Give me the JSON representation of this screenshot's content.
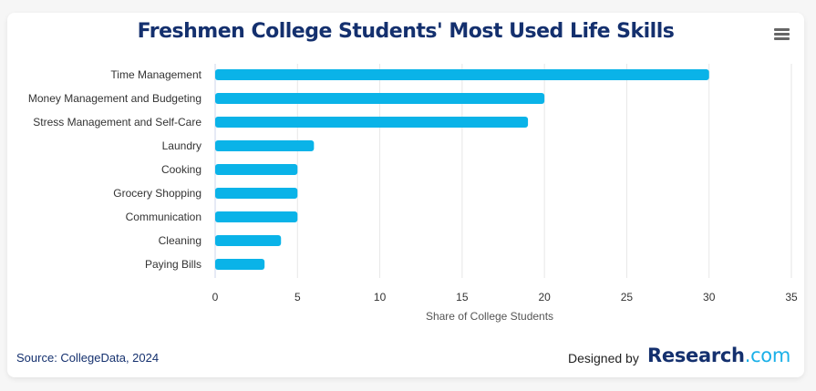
{
  "header": {
    "title": "Freshmen College Students' Most Used Life Skills",
    "menu_icon": "hamburger-menu-icon"
  },
  "footer": {
    "source": "Source: CollegeData, 2024",
    "designed_by": "Designed by",
    "logo_main": "Research",
    "logo_suffix": ".com"
  },
  "colors": {
    "bar": "#0ab3e8",
    "title": "#14306e",
    "grid": "#e6e6e6"
  },
  "chart_data": {
    "type": "bar",
    "orientation": "horizontal",
    "title": "Freshmen College Students' Most Used Life Skills",
    "categories": [
      "Time Management",
      "Money Management and Budgeting",
      "Stress Management and Self-Care",
      "Laundry",
      "Cooking",
      "Grocery Shopping",
      "Communication",
      "Cleaning",
      "Paying Bills"
    ],
    "values": [
      30,
      20,
      19,
      6,
      5,
      5,
      5,
      4,
      3
    ],
    "xlabel": "Share of College Students",
    "ylabel": "",
    "xlim": [
      0,
      35
    ],
    "xticks": [
      "0",
      "5",
      "10",
      "15",
      "20",
      "25",
      "30",
      "35"
    ],
    "grid": true,
    "legend": "none"
  }
}
